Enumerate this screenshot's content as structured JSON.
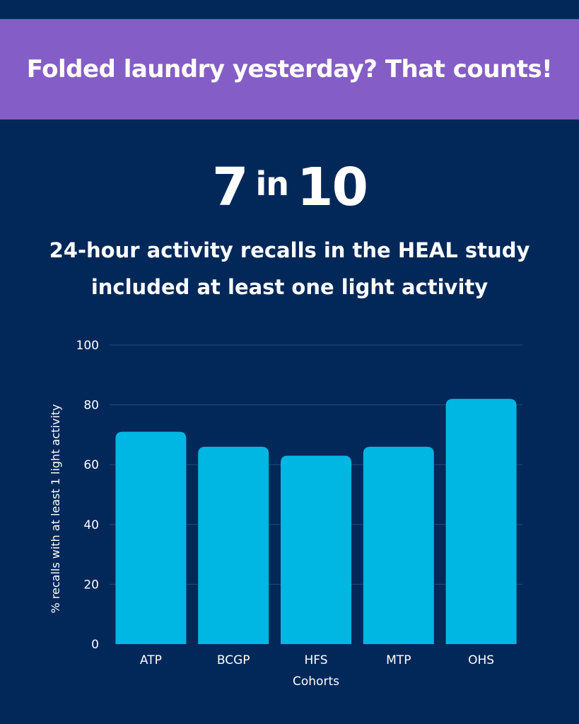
{
  "banner": {
    "text": "Folded laundry yesterday? That counts!"
  },
  "stat": {
    "left": "7",
    "mid": "in",
    "right": "10"
  },
  "subtitle": {
    "line1": "24-hour activity recalls in the HEAL study",
    "line2": "included at least one light activity"
  },
  "colors": {
    "background": "#022859",
    "banner": "#845ec6",
    "bar": "#00b6e3",
    "text": "#ffffff"
  },
  "chart_data": {
    "type": "bar",
    "categories": [
      "ATP",
      "BCGP",
      "HFS",
      "MTP",
      "OHS"
    ],
    "values": [
      71,
      66,
      63,
      66,
      82
    ],
    "xlabel": "Cohorts",
    "ylabel": "% recalls with at least 1 light activity",
    "ylim": [
      0,
      100
    ],
    "yticks": [
      0,
      20,
      40,
      60,
      80,
      100
    ],
    "grid": true,
    "legend": "none"
  }
}
